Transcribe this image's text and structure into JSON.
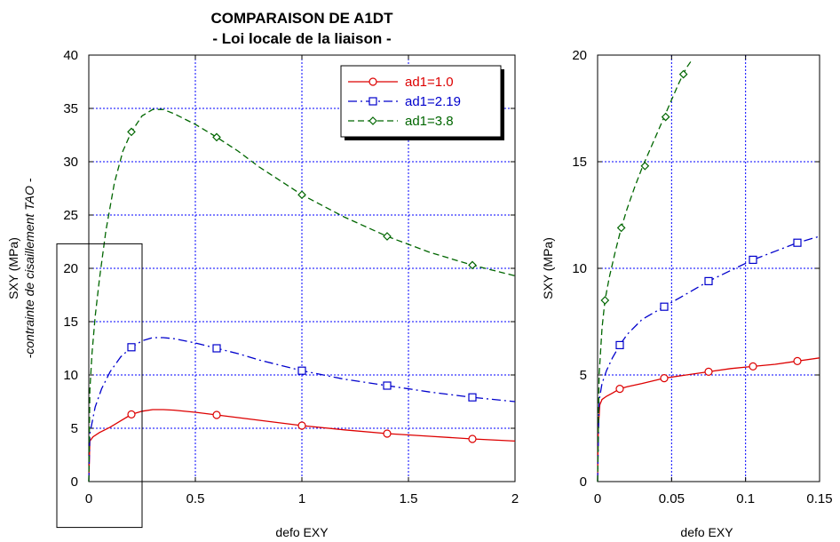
{
  "chart_data": [
    {
      "type": "line",
      "title": "COMPARAISON DE A1DT",
      "subtitle": "- Loi locale de la liaison -",
      "xlabel": "defo EXY",
      "ylabel": "SXY (MPa)",
      "ylabel2": "-contrainte de cisaillement TAO -",
      "xlim": [
        0,
        2
      ],
      "ylim": [
        0,
        40
      ],
      "xticks": [
        "0",
        "0.5",
        "1",
        "1.5",
        "2"
      ],
      "yticks": [
        "0",
        "5",
        "10",
        "15",
        "20",
        "25",
        "30",
        "35",
        "40"
      ],
      "grid": true,
      "legend_position": "top-right",
      "annotation": "zoom box 0–0.25 x 0–22",
      "series": [
        {
          "name": "ad1=1.0",
          "color": "#dd0000",
          "dash": "solid",
          "marker": "circle",
          "x": [
            0,
            0.005,
            0.02,
            0.05,
            0.1,
            0.15,
            0.2,
            0.25,
            0.3,
            0.35,
            0.4,
            0.5,
            0.6,
            0.7,
            0.8,
            0.9,
            1.0,
            1.2,
            1.4,
            1.6,
            1.8,
            2.0
          ],
          "y": [
            0,
            3.8,
            4.2,
            4.6,
            5.1,
            5.7,
            6.3,
            6.6,
            6.75,
            6.75,
            6.7,
            6.5,
            6.25,
            6.0,
            5.75,
            5.5,
            5.25,
            4.85,
            4.5,
            4.25,
            4.0,
            3.8
          ],
          "markers_x": [
            0.2,
            0.6,
            1.0,
            1.4,
            1.8
          ],
          "markers_y": [
            6.3,
            6.25,
            5.25,
            4.5,
            4.0
          ]
        },
        {
          "name": "ad1=2.19",
          "color": "#0000cc",
          "dash": "dashdot",
          "marker": "square",
          "x": [
            0,
            0.005,
            0.03,
            0.06,
            0.1,
            0.15,
            0.2,
            0.25,
            0.3,
            0.35,
            0.4,
            0.5,
            0.6,
            0.7,
            0.8,
            0.9,
            1.0,
            1.2,
            1.4,
            1.6,
            1.8,
            2.0
          ],
          "y": [
            0,
            4.5,
            7.0,
            8.7,
            10.3,
            11.7,
            12.6,
            13.2,
            13.5,
            13.5,
            13.4,
            13.0,
            12.5,
            12.0,
            11.4,
            10.9,
            10.4,
            9.6,
            9.0,
            8.4,
            7.9,
            7.5
          ],
          "markers_x": [
            0.2,
            0.6,
            1.0,
            1.4,
            1.8
          ],
          "markers_y": [
            12.6,
            12.5,
            10.4,
            9.0,
            7.9
          ]
        },
        {
          "name": "ad1=3.8",
          "color": "#006600",
          "dash": "dashed",
          "marker": "diamond",
          "x": [
            0,
            0.005,
            0.015,
            0.03,
            0.05,
            0.08,
            0.12,
            0.16,
            0.2,
            0.25,
            0.3,
            0.35,
            0.4,
            0.5,
            0.6,
            0.7,
            0.8,
            0.9,
            1.0,
            1.2,
            1.4,
            1.6,
            1.8,
            2.0
          ],
          "y": [
            0,
            8.6,
            12.0,
            15.5,
            19.0,
            23.5,
            28.0,
            31.0,
            32.8,
            34.3,
            34.9,
            34.9,
            34.5,
            33.5,
            32.3,
            31.0,
            29.5,
            28.2,
            26.9,
            24.8,
            23.0,
            21.5,
            20.3,
            19.3
          ],
          "markers_x": [
            0.2,
            0.6,
            1.0,
            1.4,
            1.8
          ],
          "markers_y": [
            32.8,
            32.3,
            26.9,
            23.0,
            20.3
          ]
        }
      ]
    },
    {
      "type": "line",
      "title": "",
      "xlabel": "defo EXY",
      "ylabel": "SXY (MPa)",
      "xlim": [
        0,
        0.15
      ],
      "ylim": [
        0,
        20
      ],
      "xticks": [
        "0",
        "0.05",
        "0.1",
        "0.15"
      ],
      "yticks": [
        "0",
        "5",
        "10",
        "15",
        "20"
      ],
      "grid": true,
      "series": [
        {
          "name": "ad1=1.0",
          "color": "#dd0000",
          "dash": "solid",
          "marker": "circle",
          "x": [
            0,
            0.0005,
            0.0015,
            0.003,
            0.006,
            0.01,
            0.015,
            0.02,
            0.03,
            0.045,
            0.06,
            0.075,
            0.09,
            0.105,
            0.12,
            0.135,
            0.15
          ],
          "y": [
            0,
            2.5,
            3.6,
            3.85,
            4.0,
            4.15,
            4.35,
            4.45,
            4.6,
            4.85,
            5.0,
            5.15,
            5.3,
            5.4,
            5.5,
            5.65,
            5.8
          ],
          "markers_x": [
            0.015,
            0.045,
            0.075,
            0.105,
            0.135
          ],
          "markers_y": [
            4.35,
            4.85,
            5.15,
            5.4,
            5.65
          ]
        },
        {
          "name": "ad1=2.19",
          "color": "#0000cc",
          "dash": "dashdot",
          "marker": "square",
          "x": [
            0,
            0.001,
            0.003,
            0.006,
            0.01,
            0.015,
            0.02,
            0.03,
            0.045,
            0.06,
            0.075,
            0.09,
            0.105,
            0.12,
            0.135,
            0.15
          ],
          "y": [
            0,
            3.8,
            4.6,
            5.2,
            5.8,
            6.4,
            6.9,
            7.6,
            8.2,
            8.8,
            9.4,
            9.9,
            10.4,
            10.8,
            11.2,
            11.5
          ],
          "markers_x": [
            0.015,
            0.045,
            0.075,
            0.105,
            0.135
          ],
          "markers_y": [
            6.4,
            8.2,
            9.4,
            10.4,
            11.2
          ]
        },
        {
          "name": "ad1=3.8",
          "color": "#006600",
          "dash": "dashed",
          "marker": "diamond",
          "x": [
            0,
            0.001,
            0.003,
            0.005,
            0.008,
            0.012,
            0.016,
            0.02,
            0.025,
            0.03,
            0.035,
            0.04,
            0.045,
            0.05,
            0.055,
            0.06,
            0.063
          ],
          "y": [
            0,
            5.0,
            7.2,
            8.5,
            9.6,
            10.8,
            11.9,
            12.8,
            13.8,
            14.7,
            15.5,
            16.3,
            17.1,
            17.9,
            18.7,
            19.4,
            19.7
          ],
          "markers_x": [
            0.005,
            0.016,
            0.032,
            0.046,
            0.058
          ],
          "markers_y": [
            8.5,
            11.9,
            14.8,
            17.1,
            19.1
          ]
        }
      ]
    }
  ]
}
